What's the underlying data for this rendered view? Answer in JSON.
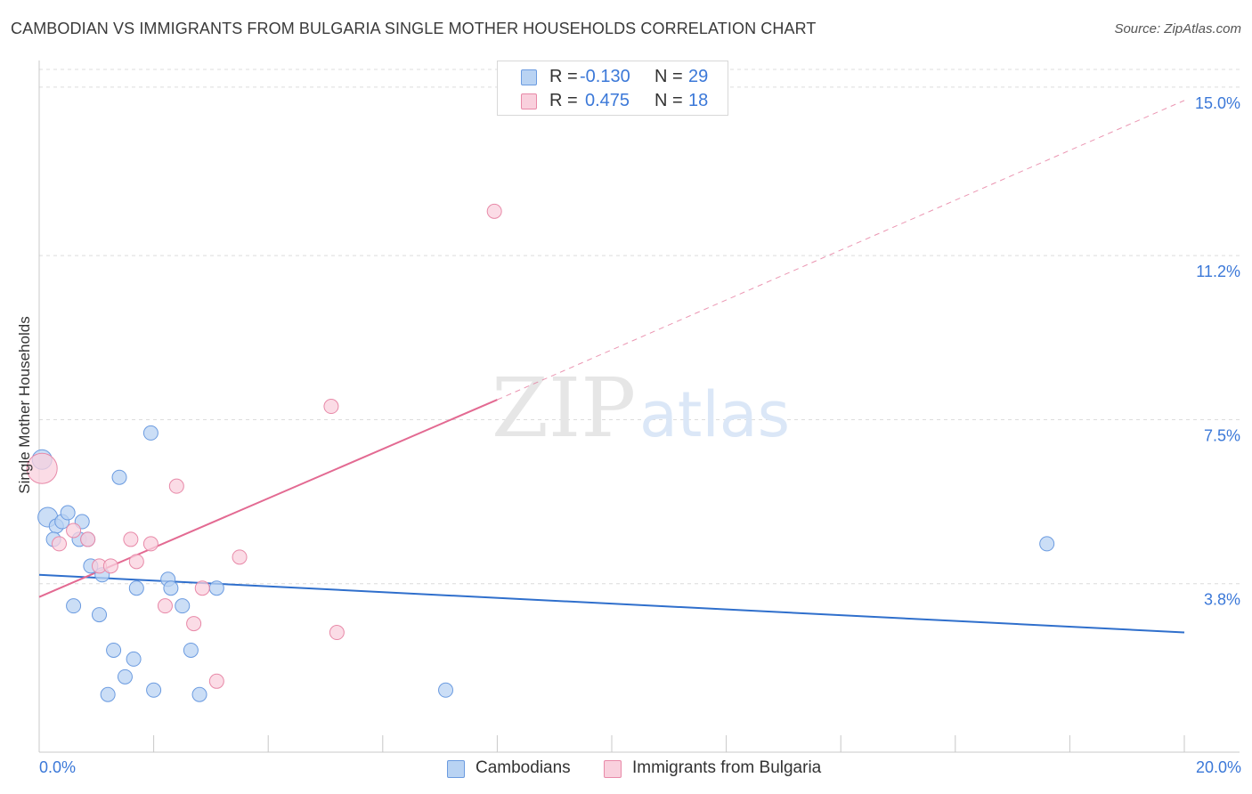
{
  "title": "CAMBODIAN VS IMMIGRANTS FROM BULGARIA SINGLE MOTHER HOUSEHOLDS CORRELATION CHART",
  "source": "Source: ZipAtlas.com",
  "watermark": {
    "zip": "ZIP",
    "atlas": "atlas"
  },
  "legend_top": [
    {
      "r_label": "R =",
      "r_value": "-0.130",
      "n_label": "N =",
      "n_value": "29",
      "color": "#a9c8f0",
      "border": "#6b9be0"
    },
    {
      "r_label": "R =",
      "r_value": "0.475",
      "n_label": "N =",
      "n_value": "18",
      "color": "#f8c6d6",
      "border": "#e889a8"
    }
  ],
  "legend_bottom": [
    {
      "label": "Cambodians",
      "color": "#b9d3f3",
      "border": "#6b9be0"
    },
    {
      "label": "Immigrants from Bulgaria",
      "color": "#f9d0dd",
      "border": "#e889a8"
    }
  ],
  "chart_data": {
    "type": "scatter",
    "title": "CAMBODIAN VS IMMIGRANTS FROM BULGARIA SINGLE MOTHER HOUSEHOLDS CORRELATION CHART",
    "xlabel": "",
    "ylabel": "Single Mother Households",
    "xlim": [
      0,
      20
    ],
    "ylim": [
      0,
      15.4
    ],
    "x_tick_labels": [
      "0.0%",
      "20.0%"
    ],
    "y_ticks": [
      3.8,
      7.5,
      11.2,
      15.0
    ],
    "y_tick_labels": [
      "3.8%",
      "7.5%",
      "11.2%",
      "15.0%"
    ],
    "grid": true,
    "series": [
      {
        "name": "Cambodians",
        "color": "#6b9be0",
        "fill": "#b9d3f3",
        "trend_color": "#2f6fcc",
        "trend": {
          "x0": 0,
          "y0": 4.0,
          "x1": 20,
          "y1": 2.7
        },
        "points": [
          [
            0.05,
            6.6
          ],
          [
            0.15,
            5.3
          ],
          [
            0.3,
            5.1
          ],
          [
            0.25,
            4.8
          ],
          [
            0.4,
            5.2
          ],
          [
            0.5,
            5.4
          ],
          [
            0.7,
            4.8
          ],
          [
            0.75,
            5.2
          ],
          [
            0.85,
            4.8
          ],
          [
            0.9,
            4.2
          ],
          [
            1.1,
            4.0
          ],
          [
            1.4,
            6.2
          ],
          [
            1.95,
            7.2
          ],
          [
            0.6,
            3.3
          ],
          [
            1.05,
            3.1
          ],
          [
            1.7,
            3.7
          ],
          [
            2.25,
            3.9
          ],
          [
            2.3,
            3.7
          ],
          [
            2.5,
            3.3
          ],
          [
            3.1,
            3.7
          ],
          [
            1.3,
            2.3
          ],
          [
            1.65,
            2.1
          ],
          [
            2.65,
            2.3
          ],
          [
            1.5,
            1.7
          ],
          [
            1.2,
            1.3
          ],
          [
            2.0,
            1.4
          ],
          [
            2.8,
            1.3
          ],
          [
            7.1,
            1.4
          ],
          [
            17.6,
            4.7
          ]
        ]
      },
      {
        "name": "Immigrants from Bulgaria",
        "color": "#e889a8",
        "fill": "#f9d0dd",
        "trend_color": "#e36a92",
        "trend": {
          "x0": 0,
          "y0": 3.5,
          "x1": 8.0,
          "y1": 7.95
        },
        "trend_ext": {
          "x0": 8.0,
          "y0": 7.95,
          "x1": 20,
          "y1": 14.7
        },
        "points": [
          [
            0.05,
            6.4
          ],
          [
            0.35,
            4.7
          ],
          [
            0.6,
            5.0
          ],
          [
            0.85,
            4.8
          ],
          [
            1.05,
            4.2
          ],
          [
            1.25,
            4.2
          ],
          [
            1.6,
            4.8
          ],
          [
            1.7,
            4.3
          ],
          [
            1.95,
            4.7
          ],
          [
            2.4,
            6.0
          ],
          [
            2.2,
            3.3
          ],
          [
            2.7,
            2.9
          ],
          [
            2.85,
            3.7
          ],
          [
            3.1,
            1.6
          ],
          [
            3.5,
            4.4
          ],
          [
            5.1,
            7.8
          ],
          [
            5.2,
            2.7
          ],
          [
            7.95,
            12.2
          ]
        ]
      }
    ]
  }
}
